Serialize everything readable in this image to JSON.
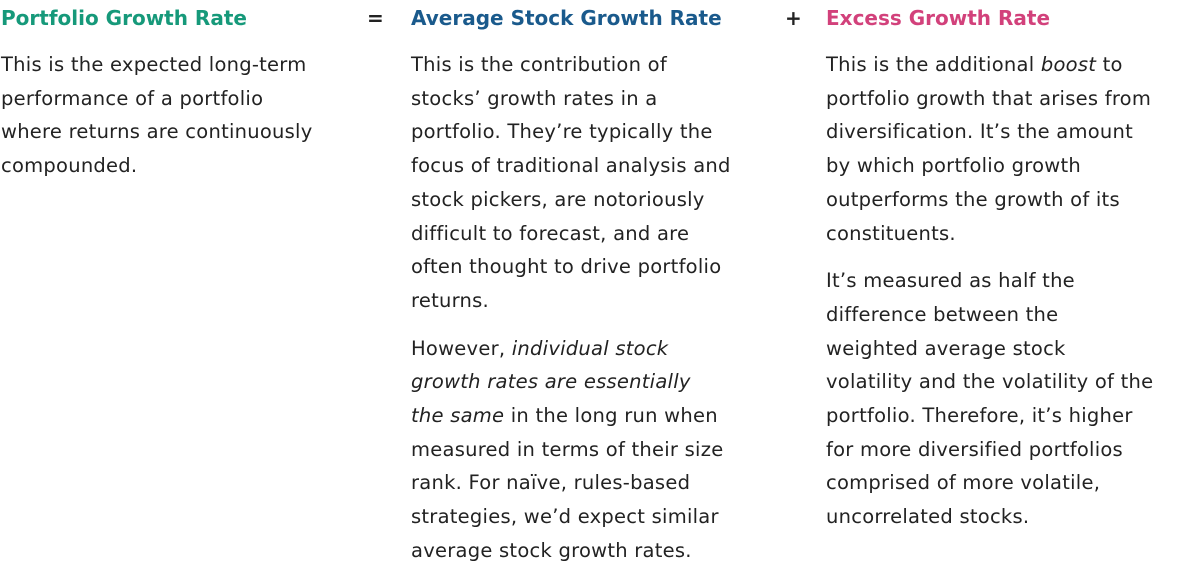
{
  "colors": {
    "portfolio_title": "#16997a",
    "average_title": "#1a5a8c",
    "excess_title": "#d2417b",
    "body_text": "#222222"
  },
  "headers": {
    "portfolio": "Portfolio Growth Rate",
    "equals": "=",
    "average": "Average Stock Growth Rate",
    "plus": "+",
    "excess": "Excess Growth Rate"
  },
  "columns": {
    "portfolio": {
      "p1": [
        "This is the expected long-term",
        "performance of a portfolio",
        "where returns are continuously",
        "compounded."
      ]
    },
    "average": {
      "p1": [
        "This is the contribution of",
        "stocks’ growth rates in a",
        "portfolio. They’re typically the",
        "focus of traditional analysis and",
        "stock pickers, are notoriously",
        "difficult to forecast, and are",
        "often thought to drive portfolio",
        "returns."
      ],
      "p2": {
        "l1_plain": "However, ",
        "l1_em": "individual stock",
        "l2_em": "growth rates are essentially",
        "l3_em": "the same",
        "l3_plain": " in the long run when",
        "l4": "measured in terms of their size",
        "l5": "rank. For naïve, rules-based",
        "l6": "strategies, we’d expect similar",
        "l7": "average stock growth rates."
      }
    },
    "excess": {
      "p1": {
        "l1_plain": "This is the additional ",
        "l1_em": "boost",
        "l1_tail": " to",
        "l2": "portfolio growth that arises from",
        "l3": "diversification. It’s the amount",
        "l4": "by which portfolio growth",
        "l5": "outperforms the growth of its",
        "l6": "constituents."
      },
      "p2": [
        "It’s measured as half the",
        "difference between the",
        "weighted average stock",
        "volatility and the volatility of the",
        "portfolio. Therefore, it’s higher",
        "for more diversified portfolios",
        "comprised of more volatile,",
        "uncorrelated stocks."
      ]
    }
  }
}
